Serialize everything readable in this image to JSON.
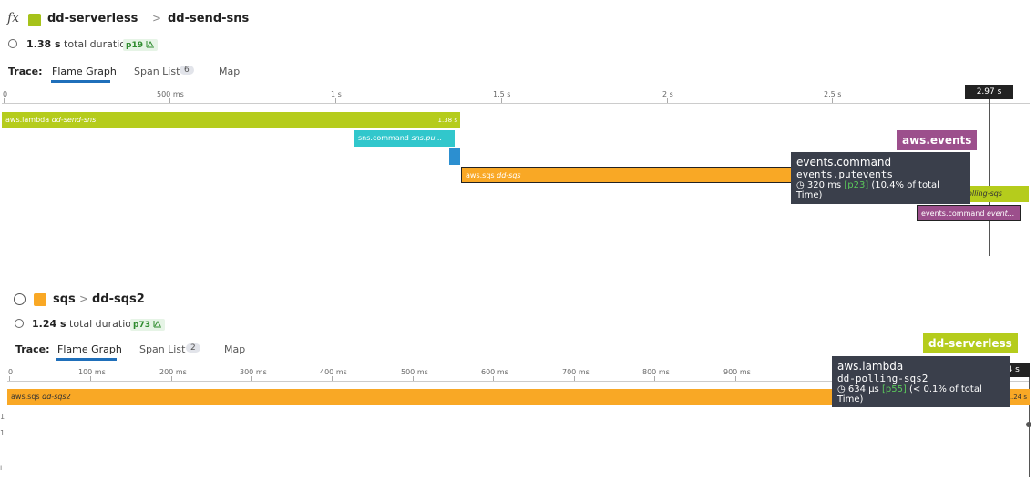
{
  "trace1": {
    "fx_label": "fx",
    "service": "dd-serverless",
    "service_color": "#a6c21a",
    "breadcrumb_sep": ">",
    "resource": "dd-send-sns",
    "duration_value": "1.38 s",
    "duration_text": "total duration",
    "percentile": "p19",
    "trace_label": "Trace:",
    "tabs": [
      {
        "label": "Flame Graph",
        "active": true
      },
      {
        "label": "Span List",
        "badge": "6"
      },
      {
        "label": "Map"
      }
    ],
    "axis_ticks": [
      "0",
      "500 ms",
      "1 s",
      "1.5 s",
      "2 s",
      "2.5 s"
    ],
    "marker": "2.97 s",
    "bars": [
      {
        "op": "aws.lambda",
        "res": "dd-send-sns",
        "end_label": "1.38 s",
        "color": "#b5cc1c"
      },
      {
        "op": "sns.command",
        "res": "sns.pu...",
        "color": "#31c7cc"
      },
      {
        "op": "",
        "res": "",
        "color": "#2c8fd0"
      },
      {
        "op": "aws.sqs",
        "res": "dd-sqs",
        "color": "#f9a825"
      },
      {
        "op": "",
        "res": "-polling-sqs",
        "color": "#b5cc1c"
      },
      {
        "op": "events.command",
        "res": "event...",
        "color": "#9c4f8c"
      }
    ],
    "service_tag": "aws.events",
    "service_tag_color": "#9c4f8c",
    "tooltip": {
      "title": "events.command",
      "resource": "events.putevents",
      "time": "320 ms",
      "percentile": "[p23]",
      "share": "(10.4% of total Time)"
    }
  },
  "trace2": {
    "service": "sqs",
    "service_color": "#f9a825",
    "breadcrumb_sep": ">",
    "resource": "dd-sqs2",
    "duration_value": "1.24 s",
    "duration_text": "total duration",
    "percentile": "p73",
    "trace_label": "Trace:",
    "tabs": [
      {
        "label": "Flame Graph",
        "active": true
      },
      {
        "label": "Span List",
        "badge": "2"
      },
      {
        "label": "Map"
      }
    ],
    "axis_ticks": [
      "0",
      "100 ms",
      "200 ms",
      "300 ms",
      "400 ms",
      "500 ms",
      "600 ms",
      "700 ms",
      "800 ms",
      "900 ms"
    ],
    "marker": "1.24 s",
    "bars": [
      {
        "op": "aws.sqs",
        "res": "dd-sqs2",
        "end_label": "1.24 s",
        "color": "#f9a825"
      }
    ],
    "service_tag": "dd-serverless",
    "service_tag_color": "#b5cc1c",
    "tooltip": {
      "title": "aws.lambda",
      "resource": "dd-polling-sqs2",
      "time": "634 µs",
      "percentile": "[p55]",
      "share": "(< 0.1% of total Time)"
    }
  }
}
